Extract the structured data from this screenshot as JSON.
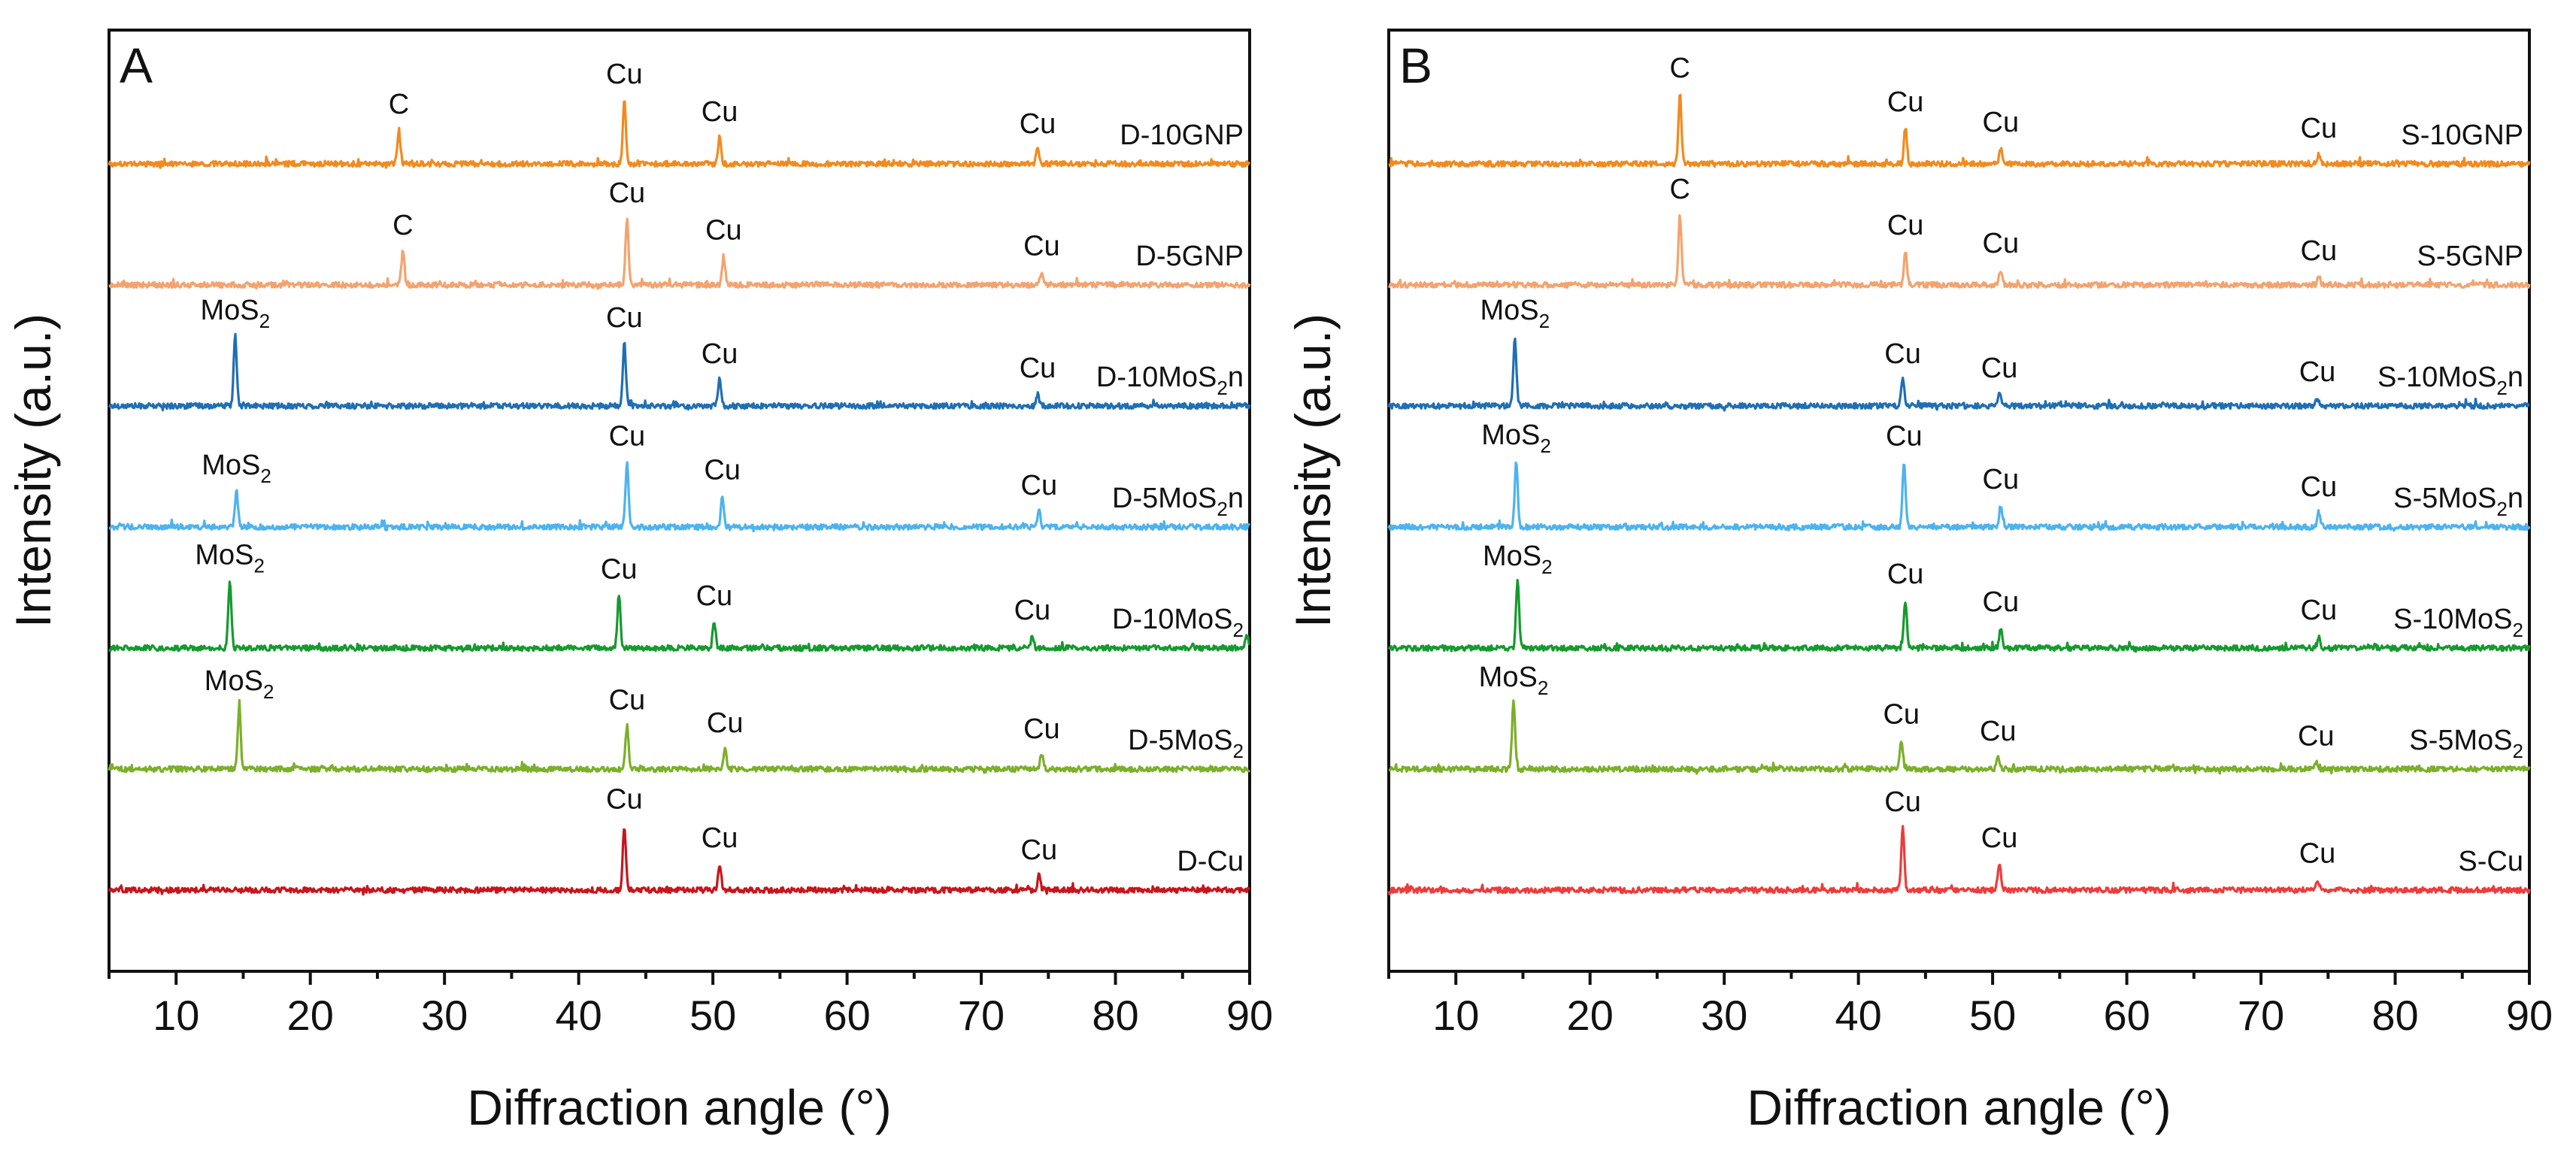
{
  "figure_title": "",
  "chart_data": [
    {
      "type": "line",
      "panel_label": "A",
      "xlabel": "Diffraction angle (°)",
      "ylabel": "Intensity (a.u.)",
      "xlim": [
        5,
        90
      ],
      "xticks": [
        10,
        20,
        30,
        40,
        50,
        60,
        70,
        80,
        90
      ],
      "grid": false,
      "y_offset_step": 1,
      "series": [
        {
          "name": "D-10GNP",
          "sub": "",
          "name_tail": "",
          "color": "#F28A1E",
          "offset": 6,
          "peaks": [
            {
              "x": 26.6,
              "h": 0.28,
              "label": "C"
            },
            {
              "x": 43.4,
              "h": 0.53,
              "label": "Cu"
            },
            {
              "x": 50.5,
              "h": 0.22,
              "label": "Cu"
            },
            {
              "x": 74.2,
              "h": 0.12,
              "label": "Cu"
            }
          ]
        },
        {
          "name": "D-5GNP",
          "sub": "",
          "name_tail": "",
          "color": "#F4A36E",
          "offset": 5,
          "peaks": [
            {
              "x": 26.9,
              "h": 0.28,
              "label": "C"
            },
            {
              "x": 43.6,
              "h": 0.55,
              "label": "Cu"
            },
            {
              "x": 50.8,
              "h": 0.24,
              "label": "Cu"
            },
            {
              "x": 74.5,
              "h": 0.11,
              "label": "Cu"
            }
          ]
        },
        {
          "name": "D-10MoS",
          "sub": "2",
          "name_tail": "n",
          "color": "#1F6FB4",
          "offset": 4,
          "peaks": [
            {
              "x": 14.4,
              "h": 0.58,
              "label": "MoS",
              "label_sub": "2"
            },
            {
              "x": 43.4,
              "h": 0.52,
              "label": "Cu"
            },
            {
              "x": 50.5,
              "h": 0.22,
              "label": "Cu"
            },
            {
              "x": 74.2,
              "h": 0.1,
              "label": "Cu"
            }
          ]
        },
        {
          "name": "D-5MoS",
          "sub": "2",
          "name_tail": "n",
          "color": "#4DB3EE",
          "offset": 3,
          "peaks": [
            {
              "x": 14.5,
              "h": 0.3,
              "label": "MoS",
              "label_sub": "2"
            },
            {
              "x": 43.6,
              "h": 0.54,
              "label": "Cu"
            },
            {
              "x": 50.7,
              "h": 0.26,
              "label": "Cu"
            },
            {
              "x": 74.3,
              "h": 0.13,
              "label": "Cu"
            }
          ]
        },
        {
          "name": "D-10MoS",
          "sub": "2",
          "name_tail": "",
          "color": "#159A2E",
          "offset": 2,
          "peaks": [
            {
              "x": 14.0,
              "h": 0.56,
              "label": "MoS",
              "label_sub": "2"
            },
            {
              "x": 43.0,
              "h": 0.44,
              "label": "Cu"
            },
            {
              "x": 50.1,
              "h": 0.22,
              "label": "Cu"
            },
            {
              "x": 73.8,
              "h": 0.1,
              "label": "Cu"
            },
            {
              "x": 89.8,
              "h": 0.1,
              "label": ""
            }
          ]
        },
        {
          "name": "D-5MoS",
          "sub": "2",
          "name_tail": "",
          "color": "#7CAF2A",
          "offset": 1,
          "peaks": [
            {
              "x": 14.7,
              "h": 0.52,
              "label": "MoS",
              "label_sub": "2"
            },
            {
              "x": 43.6,
              "h": 0.36,
              "label": "Cu"
            },
            {
              "x": 50.9,
              "h": 0.17,
              "label": "Cu"
            },
            {
              "x": 74.5,
              "h": 0.12,
              "label": "Cu"
            }
          ]
        },
        {
          "name": "D-Cu",
          "sub": "",
          "name_tail": "",
          "color": "#C8151B",
          "offset": 0,
          "peaks": [
            {
              "x": 43.4,
              "h": 0.54,
              "label": "Cu"
            },
            {
              "x": 50.5,
              "h": 0.22,
              "label": "Cu"
            },
            {
              "x": 74.3,
              "h": 0.12,
              "label": "Cu"
            }
          ]
        }
      ]
    },
    {
      "type": "line",
      "panel_label": "B",
      "xlabel": "Diffraction angle (°)",
      "ylabel": "Intensity (a.u.)",
      "xlim": [
        5,
        90
      ],
      "xticks": [
        10,
        20,
        30,
        40,
        50,
        60,
        70,
        80,
        90
      ],
      "grid": false,
      "y_offset_step": 1,
      "series": [
        {
          "name": "S-10GNP",
          "sub": "",
          "name_tail": "",
          "color": "#F28A1E",
          "offset": 6,
          "peaks": [
            {
              "x": 26.7,
              "h": 0.58,
              "label": "C"
            },
            {
              "x": 43.5,
              "h": 0.3,
              "label": "Cu"
            },
            {
              "x": 50.6,
              "h": 0.13,
              "label": "Cu"
            },
            {
              "x": 74.3,
              "h": 0.08,
              "label": "Cu"
            }
          ]
        },
        {
          "name": "S-5GNP",
          "sub": "",
          "name_tail": "",
          "color": "#F4A36E",
          "offset": 5,
          "peaks": [
            {
              "x": 26.7,
              "h": 0.58,
              "label": "C"
            },
            {
              "x": 43.5,
              "h": 0.28,
              "label": "Cu"
            },
            {
              "x": 50.6,
              "h": 0.13,
              "label": "Cu"
            },
            {
              "x": 74.3,
              "h": 0.07,
              "label": "Cu"
            }
          ]
        },
        {
          "name": "S-10MoS",
          "sub": "2",
          "name_tail": "n",
          "color": "#1F6FB4",
          "offset": 4,
          "peaks": [
            {
              "x": 14.4,
              "h": 0.58,
              "label": "MoS",
              "label_sub": "2"
            },
            {
              "x": 43.3,
              "h": 0.22,
              "label": "Cu"
            },
            {
              "x": 50.5,
              "h": 0.1,
              "label": "Cu"
            },
            {
              "x": 74.2,
              "h": 0.07,
              "label": "Cu"
            }
          ]
        },
        {
          "name": "S-5MoS",
          "sub": "2",
          "name_tail": "n",
          "color": "#4DB3EE",
          "offset": 3,
          "peaks": [
            {
              "x": 14.5,
              "h": 0.55,
              "label": "MoS",
              "label_sub": "2"
            },
            {
              "x": 43.4,
              "h": 0.54,
              "label": "Cu"
            },
            {
              "x": 50.6,
              "h": 0.18,
              "label": "Cu"
            },
            {
              "x": 74.3,
              "h": 0.12,
              "label": "Cu"
            }
          ]
        },
        {
          "name": "S-10MoS",
          "sub": "2",
          "name_tail": "",
          "color": "#159A2E",
          "offset": 2,
          "peaks": [
            {
              "x": 14.6,
              "h": 0.55,
              "label": "MoS",
              "label_sub": "2"
            },
            {
              "x": 43.5,
              "h": 0.4,
              "label": "Cu"
            },
            {
              "x": 50.6,
              "h": 0.17,
              "label": "Cu"
            },
            {
              "x": 74.3,
              "h": 0.1,
              "label": "Cu"
            }
          ]
        },
        {
          "name": "S-5MoS",
          "sub": "2",
          "name_tail": "",
          "color": "#7CAF2A",
          "offset": 1,
          "peaks": [
            {
              "x": 14.3,
              "h": 0.55,
              "label": "MoS",
              "label_sub": "2"
            },
            {
              "x": 43.2,
              "h": 0.24,
              "label": "Cu"
            },
            {
              "x": 50.4,
              "h": 0.1,
              "label": "Cu"
            },
            {
              "x": 74.1,
              "h": 0.06,
              "label": "Cu"
            }
          ]
        },
        {
          "name": "S-Cu",
          "sub": "",
          "name_tail": "",
          "color": "#EE3B3B",
          "offset": 0,
          "peaks": [
            {
              "x": 43.3,
              "h": 0.52,
              "label": "Cu"
            },
            {
              "x": 50.5,
              "h": 0.22,
              "label": "Cu"
            },
            {
              "x": 74.2,
              "h": 0.09,
              "label": "Cu"
            }
          ]
        }
      ]
    }
  ]
}
